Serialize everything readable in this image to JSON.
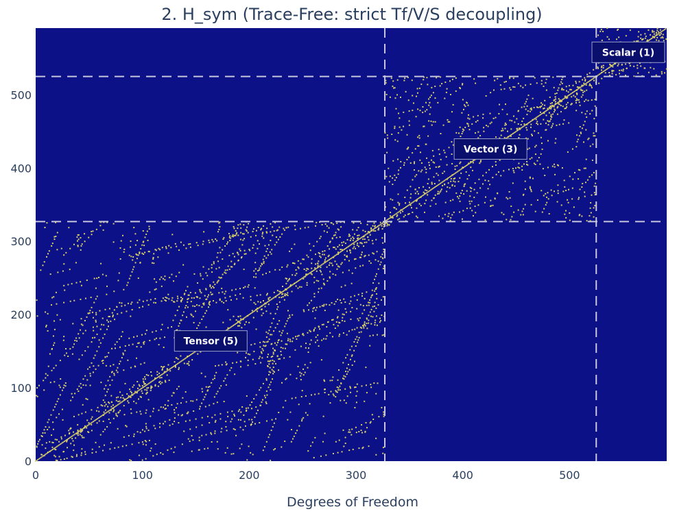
{
  "chart_data": {
    "type": "scatter",
    "title": "2. H_sym (Trace-Free: strict Tf/V/S decoupling)",
    "xlabel": "Degrees of Freedom",
    "ylabel": "",
    "xlim": [
      0,
      591
    ],
    "ylim": [
      0,
      591
    ],
    "xticks": [
      0,
      100,
      200,
      300,
      400,
      500
    ],
    "yticks": [
      0,
      100,
      200,
      300,
      400,
      500
    ],
    "grid": false,
    "colors": {
      "background": "#0d1187",
      "points": "#d8cf6a",
      "dividers": "#c8c8dc",
      "label_box": "#0a0f6e"
    },
    "block_boundaries": [
      327,
      525
    ],
    "blocks": [
      {
        "label": "Tensor (5)",
        "start": 0,
        "end": 327,
        "center": [
          164,
          164
        ]
      },
      {
        "label": "Vector (3)",
        "start": 327,
        "end": 525,
        "center": [
          426,
          426
        ]
      },
      {
        "label": "Scalar (1)",
        "start": 525,
        "end": 591,
        "center": [
          558,
          558
        ]
      }
    ]
  }
}
